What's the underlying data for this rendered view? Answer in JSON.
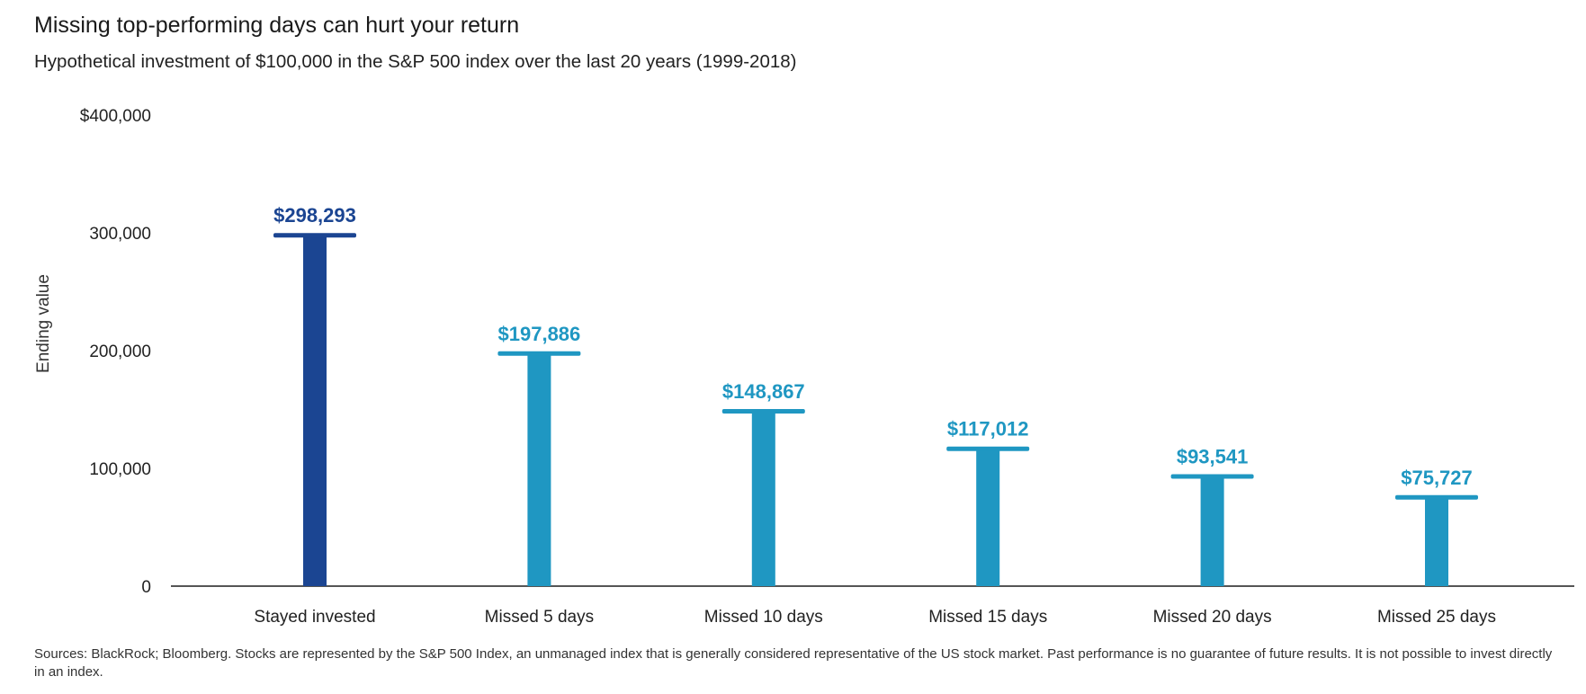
{
  "title": "Missing top-performing days can hurt your return",
  "subtitle": "Hypothetical investment of $100,000 in the S&P 500 index over the last 20 years (1999-2018)",
  "source_note": "Sources: BlackRock; Bloomberg. Stocks are represented by the S&P 500 Index, an unmanaged index that is generally considered representative of the US stock market. Past performance is no guarantee of future results. It is not possible to invest directly in an index.",
  "colors": {
    "highlight": "#1b4592",
    "bar": "#1f97c2",
    "axis": "#555555"
  },
  "chart_data": {
    "type": "bar",
    "title": "Missing top-performing days can hurt your return",
    "subtitle": "Hypothetical investment of $100,000 in the S&P 500 index over the last 20 years (1999-2018)",
    "xlabel": "",
    "ylabel": "Ending value",
    "ylim": [
      0,
      400000
    ],
    "yticks": [
      0,
      100000,
      200000,
      300000,
      400000
    ],
    "ytick_labels": [
      "0",
      "100,000",
      "200,000",
      "300,000",
      "$400,000"
    ],
    "categories": [
      "Stayed invested",
      "Missed 5 days",
      "Missed 10 days",
      "Missed 15 days",
      "Missed 20 days",
      "Missed 25 days"
    ],
    "values": [
      298293,
      197886,
      148867,
      117012,
      93541,
      75727
    ],
    "value_labels": [
      "$298,293",
      "$197,886",
      "$148,867",
      "$117,012",
      "$93,541",
      "$75,727"
    ],
    "bar_colors": [
      "#1b4592",
      "#1f97c2",
      "#1f97c2",
      "#1f97c2",
      "#1f97c2",
      "#1f97c2"
    ],
    "grid": false,
    "legend": "none"
  }
}
